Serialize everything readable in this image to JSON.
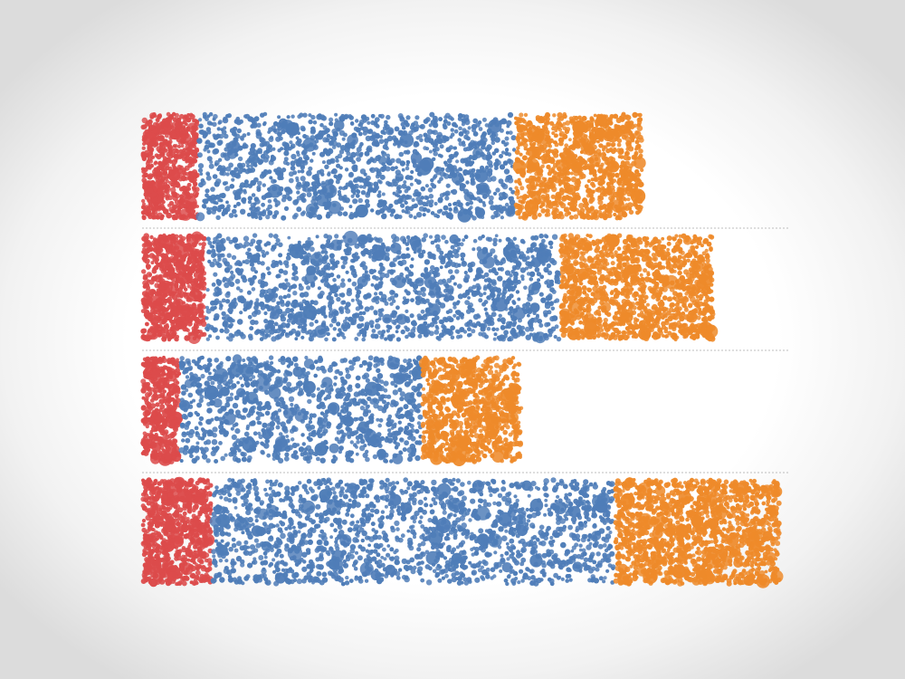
{
  "colors": {
    "red": "#dc4b4b",
    "blue": "#4f7db8",
    "orange": "#ee8a2a",
    "separator": "#bdbdbd"
  },
  "chart_data": {
    "type": "bar",
    "orientation": "horizontal",
    "stacked": true,
    "style": "dot-filled stacked bars",
    "categories": [
      "",
      "",
      "",
      ""
    ],
    "series": [
      {
        "color": "red",
        "values": [
          62,
          70,
          42,
          77
        ]
      },
      {
        "color": "blue",
        "values": [
          350,
          392,
          267,
          445
        ]
      },
      {
        "color": "orange",
        "values": [
          141,
          170,
          111,
          183
        ]
      }
    ],
    "xlim": [
      0,
      705
    ],
    "grid": false,
    "legend": "none"
  }
}
